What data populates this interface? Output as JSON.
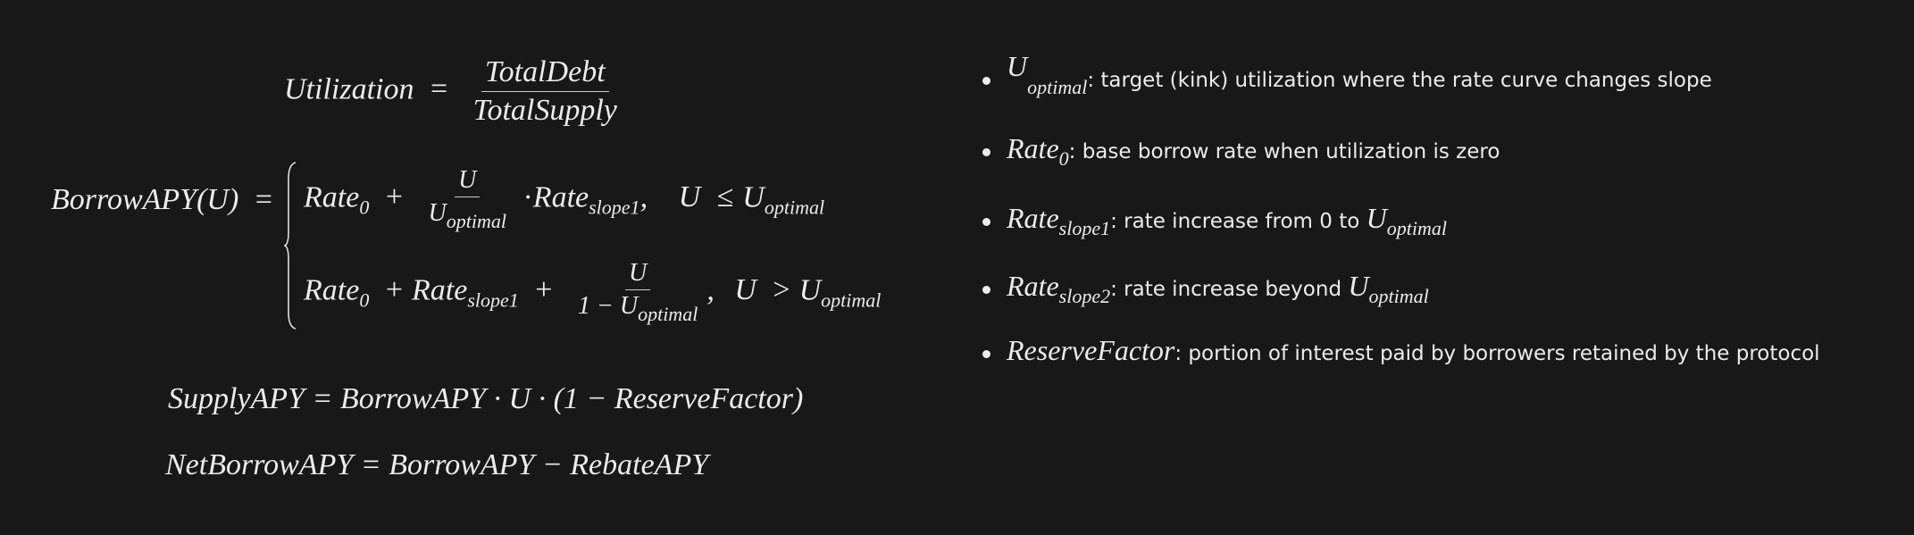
{
  "colors": {
    "background": "#181818",
    "text": "#ececec"
  },
  "equations": {
    "utilization": {
      "lhs": "Utilization",
      "eq": "=",
      "numerator": "TotalDebt",
      "denominator": "TotalSupply"
    },
    "borrow": {
      "lhs": "BorrowAPY(U)",
      "eq": "=",
      "case1": {
        "rate": "Rate",
        "sub0": "0",
        "plus": "+",
        "num": "U",
        "den": "U",
        "den_sub": "optimal",
        "dot": "·",
        "rate2": "Rate",
        "rate2_sub": "slope1",
        "comma": ",",
        "cond_u": "U",
        "cond_op": "≤",
        "cond_rhs": "U",
        "cond_sub": "optimal"
      },
      "case2": {
        "rate": "Rate",
        "sub0": "0",
        "plus": "+",
        "rate2": "Rate",
        "rate2_sub": "slope1",
        "plus2": "+",
        "num": "U",
        "den": "1 − U",
        "den_sub": "optimal",
        "comma": ",",
        "cond_u": "U",
        "cond_op": ">",
        "cond_rhs": "U",
        "cond_sub": "optimal"
      }
    },
    "supply": "SupplyAPY = BorrowAPY · U · (1 − ReserveFactor)",
    "net": "NetBorrowAPY = BorrowAPY − RebateAPY"
  },
  "definitions": [
    {
      "symbol": "U",
      "sub": "optimal",
      "text": ": target (kink) utilization where the rate curve changes slope"
    },
    {
      "symbol": "Rate",
      "sub": "0",
      "text": ": base borrow rate when utilization is zero"
    },
    {
      "symbol": "Rate",
      "sub": "slope1",
      "text": ": rate increase from 0 to ",
      "tail_symbol": "U",
      "tail_sub": "optimal"
    },
    {
      "symbol": "Rate",
      "sub": "slope2",
      "text": ": rate increase beyond ",
      "tail_symbol": "U",
      "tail_sub": "optimal"
    },
    {
      "symbol": "ReserveFactor",
      "sub": "",
      "text": ": portion of interest paid by borrowers retained by the protocol"
    }
  ]
}
